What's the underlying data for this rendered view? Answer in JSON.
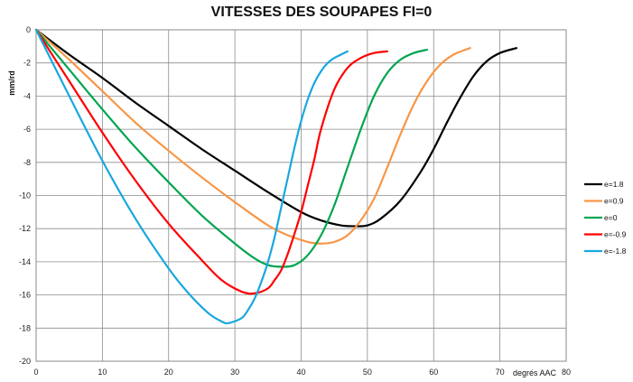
{
  "chart_data": {
    "type": "line",
    "title": "VITESSES DES SOUPAPES  FI=0",
    "xlabel": "degrés AAC",
    "ylabel": "mm/rd",
    "xlim": [
      0,
      80
    ],
    "ylim": [
      -20,
      0
    ],
    "x_ticks": [
      "0",
      "10",
      "20",
      "30",
      "40",
      "50",
      "60",
      "70",
      "80"
    ],
    "y_ticks": [
      "0",
      "-2",
      "-4",
      "-6",
      "-8",
      "-10",
      "-12",
      "-14",
      "-16",
      "-18",
      "-20"
    ],
    "grid": true,
    "legend_position": "right",
    "series": [
      {
        "name": "e=1.8",
        "color": "#000000",
        "x": [
          0,
          5,
          10,
          15,
          20,
          25,
          30,
          35,
          40,
          43,
          46,
          48,
          50,
          52,
          55,
          58,
          60,
          62,
          64,
          66,
          68,
          70,
          72.5
        ],
        "y": [
          0,
          -1.5,
          -2.9,
          -4.4,
          -5.8,
          -7.2,
          -8.5,
          -9.8,
          -11.0,
          -11.5,
          -11.8,
          -11.85,
          -11.8,
          -11.4,
          -10.3,
          -8.6,
          -7.2,
          -5.6,
          -4.1,
          -2.8,
          -1.9,
          -1.4,
          -1.1
        ]
      },
      {
        "name": "e=0.9",
        "color": "#F79646",
        "x": [
          0,
          5,
          10,
          15,
          20,
          25,
          30,
          35,
          38,
          41,
          43,
          45,
          47,
          49,
          51,
          53,
          55,
          57,
          59,
          61,
          63,
          65.5
        ],
        "y": [
          0,
          -1.8,
          -3.7,
          -5.6,
          -7.3,
          -8.9,
          -10.4,
          -11.8,
          -12.4,
          -12.8,
          -12.9,
          -12.8,
          -12.4,
          -11.5,
          -10.2,
          -8.3,
          -6.3,
          -4.5,
          -3.1,
          -2.1,
          -1.5,
          -1.1
        ]
      },
      {
        "name": "e=0",
        "color": "#00A550",
        "x": [
          0,
          5,
          10,
          15,
          20,
          25,
          30,
          33,
          35,
          37,
          39,
          41,
          43,
          45,
          47,
          49,
          51,
          53,
          55,
          57,
          59
        ],
        "y": [
          0,
          -2.4,
          -4.8,
          -7.1,
          -9.2,
          -11.2,
          -12.9,
          -13.8,
          -14.2,
          -14.3,
          -14.2,
          -13.6,
          -12.4,
          -10.6,
          -8.3,
          -6.0,
          -4.0,
          -2.6,
          -1.8,
          -1.4,
          -1.2
        ]
      },
      {
        "name": "e=-0.9",
        "color": "#FF0000",
        "x": [
          0,
          5,
          10,
          15,
          20,
          25,
          28,
          31,
          33,
          35,
          36,
          37,
          38,
          39,
          40,
          41,
          42,
          43,
          45,
          47,
          49,
          51,
          53
        ],
        "y": [
          0,
          -3.1,
          -6.2,
          -9.1,
          -11.7,
          -13.9,
          -15.1,
          -15.8,
          -15.9,
          -15.6,
          -15.1,
          -14.5,
          -13.5,
          -12.3,
          -11.0,
          -9.4,
          -7.8,
          -6.0,
          -3.6,
          -2.3,
          -1.7,
          -1.4,
          -1.3
        ]
      },
      {
        "name": "e=-1.8",
        "color": "#1AA7DF",
        "x": [
          0,
          5,
          10,
          15,
          20,
          23,
          26,
          28,
          29,
          31,
          32,
          33,
          34,
          35,
          36,
          37,
          38,
          39,
          40,
          41,
          42,
          43,
          44,
          45,
          46,
          47
        ],
        "y": [
          0,
          -4.0,
          -7.9,
          -11.4,
          -14.4,
          -15.9,
          -17.1,
          -17.6,
          -17.7,
          -17.4,
          -16.9,
          -16.2,
          -15.2,
          -14.0,
          -12.5,
          -10.7,
          -8.9,
          -7.1,
          -5.5,
          -4.2,
          -3.2,
          -2.5,
          -2.0,
          -1.7,
          -1.5,
          -1.3
        ]
      }
    ]
  }
}
